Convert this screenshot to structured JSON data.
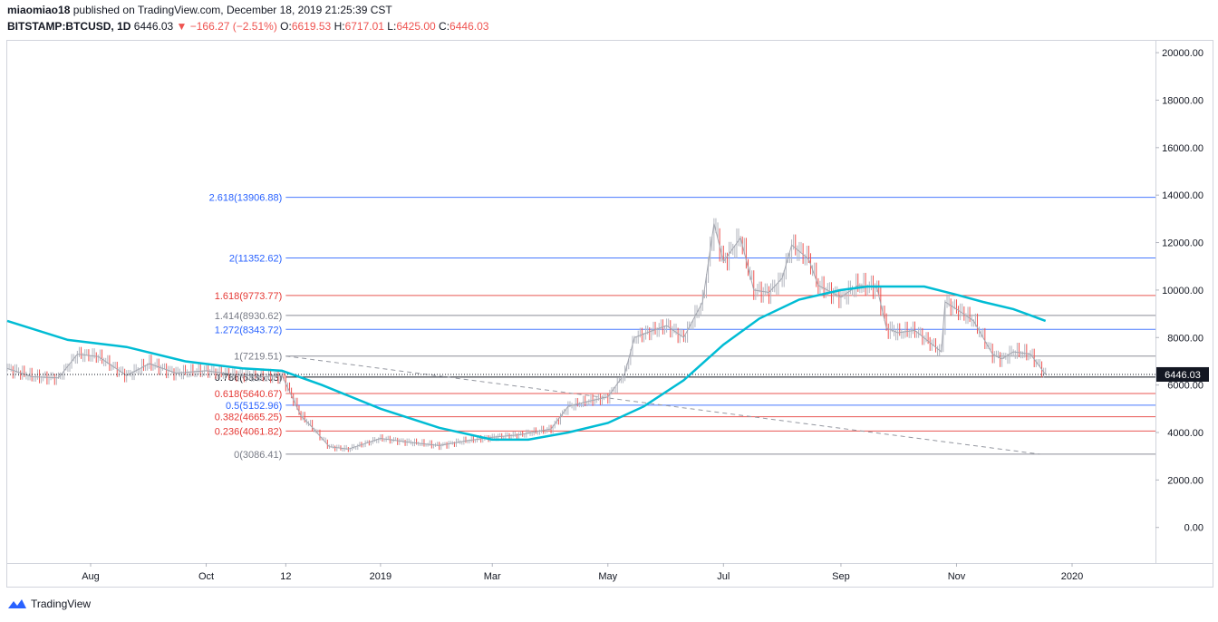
{
  "header": {
    "author": "miaomiao18",
    "published_text": "published on TradingView.com, December 18, 2019 21:25:39 CST",
    "symbol": "BITSTAMP:BTCUSD, 1D",
    "last": "6446.03",
    "change": "▼ −166.27 (−2.51%)",
    "o_label": "O:",
    "o_value": "6619.53",
    "h_label": "H:",
    "h_value": "6717.01",
    "l_label": "L:",
    "l_value": "6425.00",
    "c_label": "C:",
    "c_value": "6446.03"
  },
  "footer": {
    "brand": "TradingView"
  },
  "colors": {
    "fib_blue": "#2962ff",
    "fib_red": "#e53935",
    "fib_gray": "#787b86",
    "moving_average": "#00bcd4",
    "candle": "#b2b5be",
    "candle_down": "#ef5350",
    "candle_up": "#26a69a"
  },
  "chart_data": {
    "type": "line",
    "title": "BITSTAMP:BTCUSD, 1D",
    "ylim": [
      -1500,
      20500
    ],
    "y_ticks": [
      "20000.00",
      "18000.00",
      "16000.00",
      "14000.00",
      "12000.00",
      "10000.00",
      "8000.00",
      "6000.00",
      "4000.00",
      "2000.00",
      "0.00"
    ],
    "x_tick_labels": [
      "Aug",
      "Oct",
      "12",
      "2019",
      "Mar",
      "May",
      "Jul",
      "Sep",
      "Nov",
      "2020"
    ],
    "last_price_label": "6446.03",
    "fib_levels": [
      {
        "label": "2.618(13906.88)",
        "value": 13906.88,
        "color": "blue"
      },
      {
        "label": "2(11352.62)",
        "value": 11352.62,
        "color": "blue"
      },
      {
        "label": "1.618(9773.77)",
        "value": 9773.77,
        "color": "red"
      },
      {
        "label": "1.414(8930.62)",
        "value": 8930.62,
        "color": "gray"
      },
      {
        "label": "1.272(8343.72)",
        "value": 8343.72,
        "color": "blue"
      },
      {
        "label": "1(7219.51)",
        "value": 7219.51,
        "color": "gray"
      },
      {
        "label": "0.786(6335.03)",
        "value": 6335.03,
        "color": "black"
      },
      {
        "label": "0.618(5640.67)",
        "value": 5640.67,
        "color": "red"
      },
      {
        "label": "0.5(5152.96)",
        "value": 5152.96,
        "color": "blue"
      },
      {
        "label": "0.382(4665.25)",
        "value": 4665.25,
        "color": "red"
      },
      {
        "label": "0.236(4061.82)",
        "value": 4061.82,
        "color": "red"
      },
      {
        "label": "0(3086.41)",
        "value": 3086.41,
        "color": "gray"
      }
    ],
    "series": [
      {
        "x": [
          "2018-06-18",
          "2018-07-01",
          "2018-07-15",
          "2018-07-25",
          "2018-08-05",
          "2018-08-20",
          "2018-09-01",
          "2018-09-15",
          "2018-10-01",
          "2018-10-15",
          "2018-11-01",
          "2018-11-10",
          "2018-11-20",
          "2018-11-25",
          "2018-12-05",
          "2018-12-15",
          "2019-01-01",
          "2019-01-15",
          "2019-02-01",
          "2019-02-15",
          "2019-03-01",
          "2019-03-15",
          "2019-04-01",
          "2019-04-10",
          "2019-04-20",
          "2019-05-01",
          "2019-05-10",
          "2019-05-15",
          "2019-05-25",
          "2019-06-01",
          "2019-06-10",
          "2019-06-20",
          "2019-06-26",
          "2019-07-01",
          "2019-07-10",
          "2019-07-17",
          "2019-07-25",
          "2019-08-01",
          "2019-08-06",
          "2019-08-15",
          "2019-08-20",
          "2019-09-01",
          "2019-09-10",
          "2019-09-20",
          "2019-09-25",
          "2019-10-01",
          "2019-10-10",
          "2019-10-24",
          "2019-10-26",
          "2019-11-01",
          "2019-11-10",
          "2019-11-20",
          "2019-11-25",
          "2019-12-01",
          "2019-12-10",
          "2019-12-18"
        ],
        "values": [
          6700,
          6350,
          6300,
          7300,
          7200,
          6400,
          6900,
          6500,
          6600,
          6450,
          6350,
          6400,
          4700,
          4300,
          3400,
          3300,
          3750,
          3600,
          3450,
          3650,
          3800,
          3900,
          4150,
          5100,
          5300,
          5500,
          6500,
          8000,
          8300,
          8500,
          8000,
          9500,
          12800,
          11200,
          12200,
          10000,
          9900,
          10500,
          11900,
          11300,
          10200,
          9700,
          10200,
          10100,
          8400,
          8200,
          8300,
          7400,
          9500,
          9200,
          8700,
          7300,
          7100,
          7400,
          7300,
          6446
        ]
      },
      {
        "name": "",
        "x": [
          "2018-06-18",
          "2018-07-20",
          "2018-08-20",
          "2018-09-20",
          "2018-10-20",
          "2018-11-10",
          "2018-12-01",
          "2019-01-01",
          "2019-02-01",
          "2019-03-01",
          "2019-03-20",
          "2019-04-10",
          "2019-05-01",
          "2019-05-20",
          "2019-06-10",
          "2019-07-01",
          "2019-07-20",
          "2019-08-10",
          "2019-09-01",
          "2019-09-15",
          "2019-10-15",
          "2019-11-01",
          "2019-11-15",
          "2019-12-01",
          "2019-12-18"
        ],
        "values": [
          8700,
          7900,
          7600,
          7000,
          6700,
          6600,
          6000,
          5000,
          4200,
          3700,
          3700,
          4000,
          4400,
          5100,
          6200,
          7700,
          8800,
          9600,
          10000,
          10150,
          10150,
          9800,
          9500,
          9200,
          8700
        ]
      }
    ]
  }
}
